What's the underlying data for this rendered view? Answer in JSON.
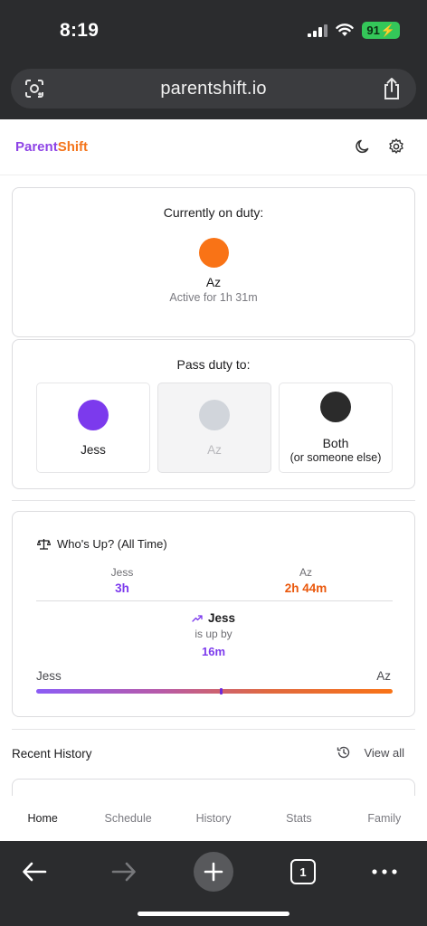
{
  "status_bar": {
    "time": "8:19",
    "battery": "91"
  },
  "browser": {
    "url": "parentshift.io",
    "tab_count": "1"
  },
  "app": {
    "logo_part1": "Parent",
    "logo_part2": "Shift"
  },
  "on_duty": {
    "title": "Currently on duty:",
    "name": "Az",
    "active": "Active for 1h 31m",
    "color": "#f97316"
  },
  "pass_duty": {
    "title": "Pass duty to:",
    "options": [
      {
        "label": "Jess",
        "color": "#7c3aed"
      },
      {
        "label": "Az",
        "color": "#d1d5db"
      },
      {
        "label": "Both",
        "sub": "(or someone else)",
        "color": "#2b2b2b"
      }
    ]
  },
  "whos_up": {
    "title": "Who's Up? (All Time)",
    "left": {
      "name": "Jess",
      "value": "3h",
      "color": "#7c3aed"
    },
    "right": {
      "name": "Az",
      "value": "2h 44m",
      "color": "#ea580c"
    },
    "leader": "Jess",
    "leader_sub": "is up by",
    "leader_diff": "16m",
    "bar_left": "Jess",
    "bar_right": "Az",
    "balance_fraction": 0.52
  },
  "recent": {
    "title": "Recent History",
    "view_all": "View all"
  },
  "tabs": [
    "Home",
    "Schedule",
    "History",
    "Stats",
    "Family"
  ]
}
